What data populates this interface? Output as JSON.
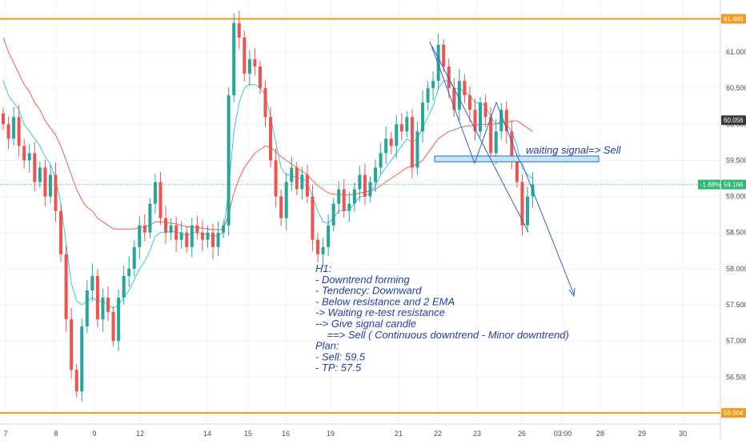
{
  "chart_data": {
    "type": "candlestick",
    "timeframe": "H1",
    "y_range": [
      55.85,
      61.72
    ],
    "y_ticks": [
      "61.000",
      "60.500",
      "60.000",
      "59.500",
      "59.000",
      "58.500",
      "58.000",
      "57.500",
      "57.000",
      "56.500"
    ],
    "x_ticks": [
      "7",
      "8",
      "9",
      "12",
      "14",
      "15",
      "16",
      "19",
      "21",
      "22",
      "23",
      "26",
      "03:00",
      "28",
      "29",
      "30"
    ],
    "resistance_levels": [
      {
        "value": 61.46,
        "label": "61.460"
      },
      {
        "value": 56.004,
        "label": "56.004"
      }
    ],
    "current_price": {
      "value": 59.166,
      "label": "59.166",
      "change_label": "-1.68%"
    },
    "ema_value_label": "60.056",
    "ema_value": 60.056,
    "entry_zone": [
      59.48,
      59.56
    ],
    "candles_close": [
      60.0,
      59.8,
      60.1,
      59.7,
      59.5,
      59.6,
      59.2,
      59.4,
      59.0,
      59.3,
      58.8,
      58.2,
      57.3,
      56.6,
      56.3,
      57.2,
      57.7,
      57.9,
      57.3,
      57.6,
      57.4,
      57.0,
      57.6,
      57.9,
      58.0,
      58.3,
      58.6,
      58.5,
      58.9,
      59.2,
      58.7,
      58.5,
      58.6,
      58.4,
      58.5,
      58.3,
      58.6,
      58.5,
      58.4,
      58.5,
      58.3,
      58.5,
      58.6,
      60.4,
      61.4,
      61.2,
      60.7,
      60.9,
      60.8,
      60.5,
      60.1,
      59.5,
      59.0,
      58.7,
      59.2,
      59.4,
      59.1,
      59.3,
      59.0,
      58.4,
      58.2,
      58.3,
      58.6,
      58.9,
      59.1,
      58.8,
      58.9,
      59.1,
      59.3,
      59.0,
      59.2,
      59.4,
      59.6,
      59.8,
      59.7,
      60.0,
      59.9,
      60.1,
      59.4,
      59.9,
      60.3,
      60.5,
      60.6,
      61.1,
      60.8,
      60.5,
      60.2,
      60.6,
      60.4,
      60.2,
      59.9,
      60.3,
      60.1,
      59.6,
      59.9,
      60.2,
      59.9,
      59.5,
      59.2,
      58.6,
      59.0,
      59.166
    ],
    "ema_fast": [
      60.6,
      60.4,
      60.3,
      60.2,
      60.0,
      59.9,
      59.8,
      59.7,
      59.55,
      59.45,
      59.25,
      58.9,
      58.35,
      57.8,
      57.55,
      57.5,
      57.55,
      57.6,
      57.55,
      57.55,
      57.5,
      57.45,
      57.5,
      57.6,
      57.7,
      57.85,
      58.0,
      58.1,
      58.25,
      58.45,
      58.5,
      58.5,
      58.52,
      58.5,
      58.5,
      58.45,
      58.5,
      58.5,
      58.48,
      58.48,
      58.45,
      58.46,
      58.5,
      59.1,
      59.9,
      60.3,
      60.5,
      60.55,
      60.55,
      60.5,
      60.4,
      60.1,
      59.75,
      59.4,
      59.3,
      59.3,
      59.25,
      59.25,
      59.2,
      59.0,
      58.8,
      58.65,
      58.63,
      58.7,
      58.8,
      58.8,
      58.82,
      58.9,
      59.0,
      59.0,
      59.05,
      59.15,
      59.3,
      59.4,
      59.5,
      59.6,
      59.7,
      59.8,
      59.75,
      59.8,
      59.95,
      60.1,
      60.25,
      60.5,
      60.6,
      60.6,
      60.5,
      60.5,
      60.45,
      60.4,
      60.3,
      60.3,
      60.25,
      60.1,
      60.0,
      60.05,
      60.0,
      59.9,
      59.7,
      59.4,
      59.3,
      59.25
    ],
    "ema_slow": [
      61.2,
      61.0,
      60.85,
      60.7,
      60.55,
      60.45,
      60.3,
      60.2,
      60.05,
      59.95,
      59.85,
      59.7,
      59.5,
      59.3,
      59.1,
      58.95,
      58.85,
      58.8,
      58.7,
      58.65,
      58.6,
      58.55,
      58.55,
      58.55,
      58.55,
      58.55,
      58.57,
      58.58,
      58.6,
      58.65,
      58.65,
      58.64,
      58.63,
      58.62,
      58.6,
      58.58,
      58.58,
      58.57,
      58.56,
      58.55,
      58.54,
      58.54,
      58.55,
      58.75,
      59.05,
      59.25,
      59.4,
      59.5,
      59.6,
      59.65,
      59.7,
      59.68,
      59.62,
      59.55,
      59.5,
      59.45,
      59.4,
      59.35,
      59.3,
      59.22,
      59.15,
      59.1,
      59.05,
      59.03,
      59.03,
      59.02,
      59.02,
      59.03,
      59.05,
      59.06,
      59.08,
      59.1,
      59.15,
      59.2,
      59.25,
      59.3,
      59.35,
      59.4,
      59.42,
      59.45,
      59.5,
      59.6,
      59.7,
      59.8,
      59.85,
      59.9,
      59.92,
      59.95,
      59.97,
      59.98,
      59.98,
      60.0,
      60.0,
      60.0,
      60.0,
      60.02,
      60.03,
      60.04,
      60.05,
      60.0,
      59.95,
      59.9
    ],
    "annotation_signal": "waiting signal=> Sell",
    "annotation_plan_lines": [
      "H1:",
      "- Downtrend forming",
      "- Tendency: Downward",
      "- Below resistance and 2 EMA",
      "-> Waiting re-test resistance",
      "--> Give signal candle",
      "    ==> Sell ( Continuous downtrend - Minor downtrend)",
      "Plan:",
      "- Sell: 59.5",
      "- TP: 57.5"
    ],
    "grid": true
  },
  "colors": {
    "up": "#26a69a",
    "down": "#ef5350",
    "ema_fast": "#38c6e0",
    "ema_slow": "#f06048",
    "resistance": "#f39a1e",
    "current": "#2eb872",
    "drawing": "#2f63c9",
    "zone_fill": "#bfe7f6",
    "ema_tag": "#3a3a3a"
  }
}
